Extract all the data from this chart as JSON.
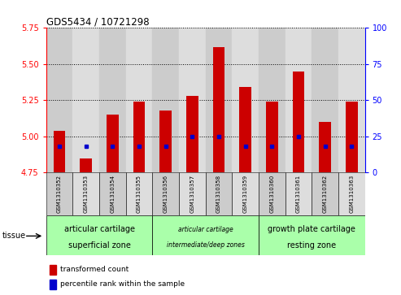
{
  "title": "GDS5434 / 10721298",
  "samples": [
    "GSM1310352",
    "GSM1310353",
    "GSM1310354",
    "GSM1310355",
    "GSM1310356",
    "GSM1310357",
    "GSM1310358",
    "GSM1310359",
    "GSM1310360",
    "GSM1310361",
    "GSM1310362",
    "GSM1310363"
  ],
  "transformed_counts": [
    5.04,
    4.85,
    5.15,
    5.24,
    5.18,
    5.28,
    5.62,
    5.34,
    5.24,
    5.45,
    5.1,
    5.24
  ],
  "percentile_ranks": [
    18,
    18,
    18,
    18,
    18,
    25,
    25,
    18,
    18,
    25,
    18,
    18
  ],
  "ylim_left": [
    4.75,
    5.75
  ],
  "ylim_right": [
    0,
    100
  ],
  "yticks_left": [
    4.75,
    5.0,
    5.25,
    5.5,
    5.75
  ],
  "yticks_right": [
    0,
    25,
    50,
    75,
    100
  ],
  "bar_color": "#cc0000",
  "dot_color": "#0000cc",
  "bar_bottom": 4.75,
  "col_colors": [
    "#cccccc",
    "#dddddd"
  ],
  "groups": [
    {
      "label": "articular cartilage\nsuperficial zone",
      "start": 0,
      "end": 4,
      "fontsize": 7,
      "style": "normal"
    },
    {
      "label": "articular cartilage\nintermediate/deep zones",
      "start": 4,
      "end": 8,
      "fontsize": 5.5,
      "style": "italic"
    },
    {
      "label": "growth plate cartilage\nresting zone",
      "start": 8,
      "end": 12,
      "fontsize": 7,
      "style": "normal"
    }
  ],
  "group_color": "#aaffaa",
  "tissue_label": "tissue",
  "legend_items": [
    {
      "color": "#cc0000",
      "label": "transformed count"
    },
    {
      "color": "#0000cc",
      "label": "percentile rank within the sample"
    }
  ]
}
